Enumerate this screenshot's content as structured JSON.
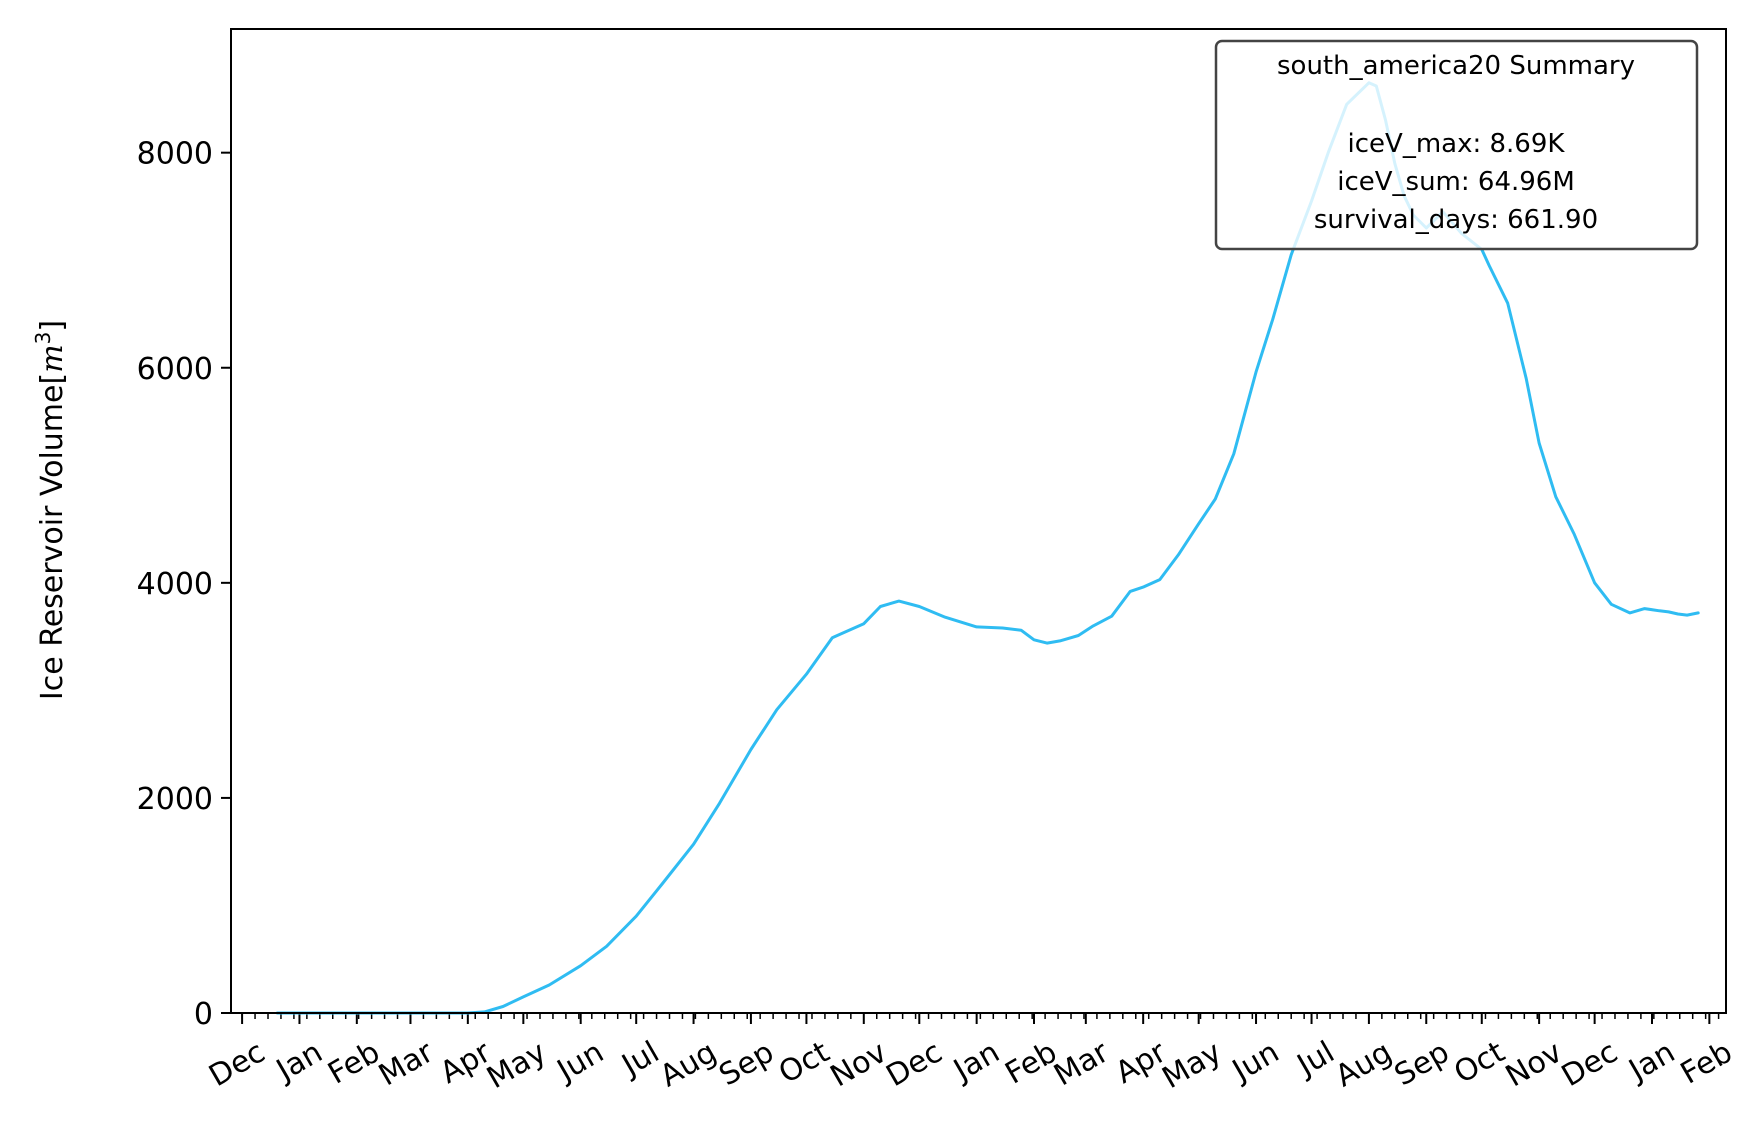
{
  "chart_data": {
    "type": "line",
    "ylabel": "Ice Reservoir Volume[m³]",
    "ylabel_main": "Ice Reservoir Volume[",
    "ylabel_var": "m",
    "ylabel_exp": "3",
    "ylabel_close": "]",
    "xlabel": "",
    "ylim": [
      0,
      9150
    ],
    "yticks": [
      0,
      2000,
      4000,
      6000,
      8000
    ],
    "xlim": [
      "2019-11-25",
      "2022-02-10"
    ],
    "x_tick_labels": [
      {
        "date": "2019-12-01",
        "label": "Dec"
      },
      {
        "date": "2020-01-01",
        "label": "Jan"
      },
      {
        "date": "2020-02-01",
        "label": "Feb"
      },
      {
        "date": "2020-03-01",
        "label": "Mar"
      },
      {
        "date": "2020-04-01",
        "label": "Apr"
      },
      {
        "date": "2020-05-01",
        "label": "May"
      },
      {
        "date": "2020-06-01",
        "label": "Jun"
      },
      {
        "date": "2020-07-01",
        "label": "Jul"
      },
      {
        "date": "2020-08-01",
        "label": "Aug"
      },
      {
        "date": "2020-09-01",
        "label": "Sep"
      },
      {
        "date": "2020-10-01",
        "label": "Oct"
      },
      {
        "date": "2020-11-01",
        "label": "Nov"
      },
      {
        "date": "2020-12-01",
        "label": "Dec"
      },
      {
        "date": "2021-01-01",
        "label": "Jan"
      },
      {
        "date": "2021-02-01",
        "label": "Feb"
      },
      {
        "date": "2021-03-01",
        "label": "Mar"
      },
      {
        "date": "2021-04-01",
        "label": "Apr"
      },
      {
        "date": "2021-05-01",
        "label": "May"
      },
      {
        "date": "2021-06-01",
        "label": "Jun"
      },
      {
        "date": "2021-07-01",
        "label": "Jul"
      },
      {
        "date": "2021-08-01",
        "label": "Aug"
      },
      {
        "date": "2021-09-01",
        "label": "Sep"
      },
      {
        "date": "2021-10-01",
        "label": "Oct"
      },
      {
        "date": "2021-11-01",
        "label": "Nov"
      },
      {
        "date": "2021-12-01",
        "label": "Dec"
      },
      {
        "date": "2022-01-01",
        "label": "Jan"
      },
      {
        "date": "2022-02-01",
        "label": "Feb"
      }
    ],
    "minor_ticks": "weekly",
    "grid": false,
    "series": [
      {
        "color": "#2fbcf2",
        "x": [
          "2019-12-20",
          "2020-01-10",
          "2020-02-10",
          "2020-03-10",
          "2020-04-01",
          "2020-04-10",
          "2020-04-20",
          "2020-05-01",
          "2020-05-15",
          "2020-06-01",
          "2020-06-15",
          "2020-07-01",
          "2020-07-15",
          "2020-08-01",
          "2020-08-15",
          "2020-09-01",
          "2020-09-15",
          "2020-10-01",
          "2020-10-15",
          "2020-11-01",
          "2020-11-10",
          "2020-11-20",
          "2020-12-01",
          "2020-12-15",
          "2021-01-01",
          "2021-01-15",
          "2021-01-25",
          "2021-02-01",
          "2021-02-08",
          "2021-02-15",
          "2021-02-25",
          "2021-03-05",
          "2021-03-15",
          "2021-03-25",
          "2021-04-01",
          "2021-04-10",
          "2021-04-20",
          "2021-05-01",
          "2021-05-10",
          "2021-05-20",
          "2021-06-01",
          "2021-06-10",
          "2021-06-20",
          "2021-07-01",
          "2021-07-10",
          "2021-07-20",
          "2021-08-01",
          "2021-08-05",
          "2021-08-10",
          "2021-08-15",
          "2021-08-20",
          "2021-08-25",
          "2021-09-01",
          "2021-09-10",
          "2021-09-20",
          "2021-10-01",
          "2021-10-05",
          "2021-10-15",
          "2021-10-25",
          "2021-11-01",
          "2021-11-10",
          "2021-11-20",
          "2021-12-01",
          "2021-12-10",
          "2021-12-20",
          "2021-12-28",
          "2022-01-05",
          "2022-01-10",
          "2022-01-15",
          "2022-01-20",
          "2022-01-26"
        ],
        "y": [
          0,
          0,
          0,
          0,
          0,
          10,
          60,
          150,
          260,
          440,
          620,
          900,
          1200,
          1570,
          1950,
          2450,
          2820,
          3150,
          3490,
          3620,
          3780,
          3830,
          3780,
          3680,
          3590,
          3580,
          3560,
          3470,
          3440,
          3460,
          3510,
          3600,
          3690,
          3920,
          3960,
          4030,
          4260,
          4550,
          4780,
          5200,
          5960,
          6450,
          7050,
          7550,
          8000,
          8450,
          8650,
          8620,
          8300,
          7900,
          7600,
          7420,
          7300,
          7450,
          7250,
          7100,
          6950,
          6600,
          5900,
          5300,
          4800,
          4450,
          4000,
          3800,
          3720,
          3760,
          3740,
          3730,
          3710,
          3700,
          3720
        ]
      }
    ],
    "legend_box": {
      "position": "top-right",
      "title": "south_america20 Summary",
      "lines": [
        "iceV_max: 8.69K",
        "iceV_sum: 64.96M",
        "survival_days: 661.90"
      ]
    }
  }
}
